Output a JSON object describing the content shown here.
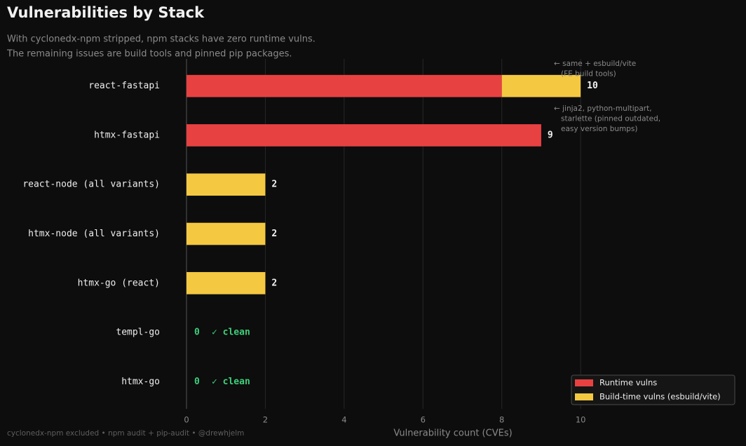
{
  "chart_data": {
    "type": "hbar-stacked",
    "title": "Vulnerabilities by Stack",
    "subtitle": [
      "With cyclonedx-npm stripped, npm stacks have zero runtime vulns.",
      "The remaining issues are build tools and pinned pip packages."
    ],
    "categories": [
      "react-fastapi",
      "htmx-fastapi",
      "react-node (all variants)",
      "htmx-node (all variants)",
      "htmx-go (react)",
      "templ-go",
      "htmx-go"
    ],
    "series": [
      {
        "name": "Runtime vulns",
        "color": "#e84142",
        "values": [
          8,
          9,
          0,
          0,
          0,
          0,
          0
        ]
      },
      {
        "name": "Build-time vulns (esbuild/vite)",
        "color": "#f5c842",
        "values": [
          2,
          0,
          2,
          2,
          2,
          0,
          0
        ]
      }
    ],
    "totals": [
      10,
      9,
      2,
      2,
      2,
      0,
      0
    ],
    "clean_label": "✓ clean",
    "clean_color": "#3ecf7a",
    "annotations": [
      {
        "category": 0,
        "lines": [
          "← same + esbuild/vite",
          "   (FE build tools)"
        ]
      },
      {
        "category": 1,
        "lines": [
          "← jinja2, python-multipart,",
          "   starlette (pinned outdated,",
          "   easy version bumps)"
        ]
      }
    ],
    "xlabel": "Vulnerability count (CVEs)",
    "xlim": [
      0,
      14
    ],
    "xticks": [
      0,
      2,
      4,
      6,
      8,
      10
    ],
    "grid": true,
    "legend": "lower right",
    "footer": "cyclonedx-npm excluded  •  npm audit + pip-audit  •  @drewhjelm"
  }
}
